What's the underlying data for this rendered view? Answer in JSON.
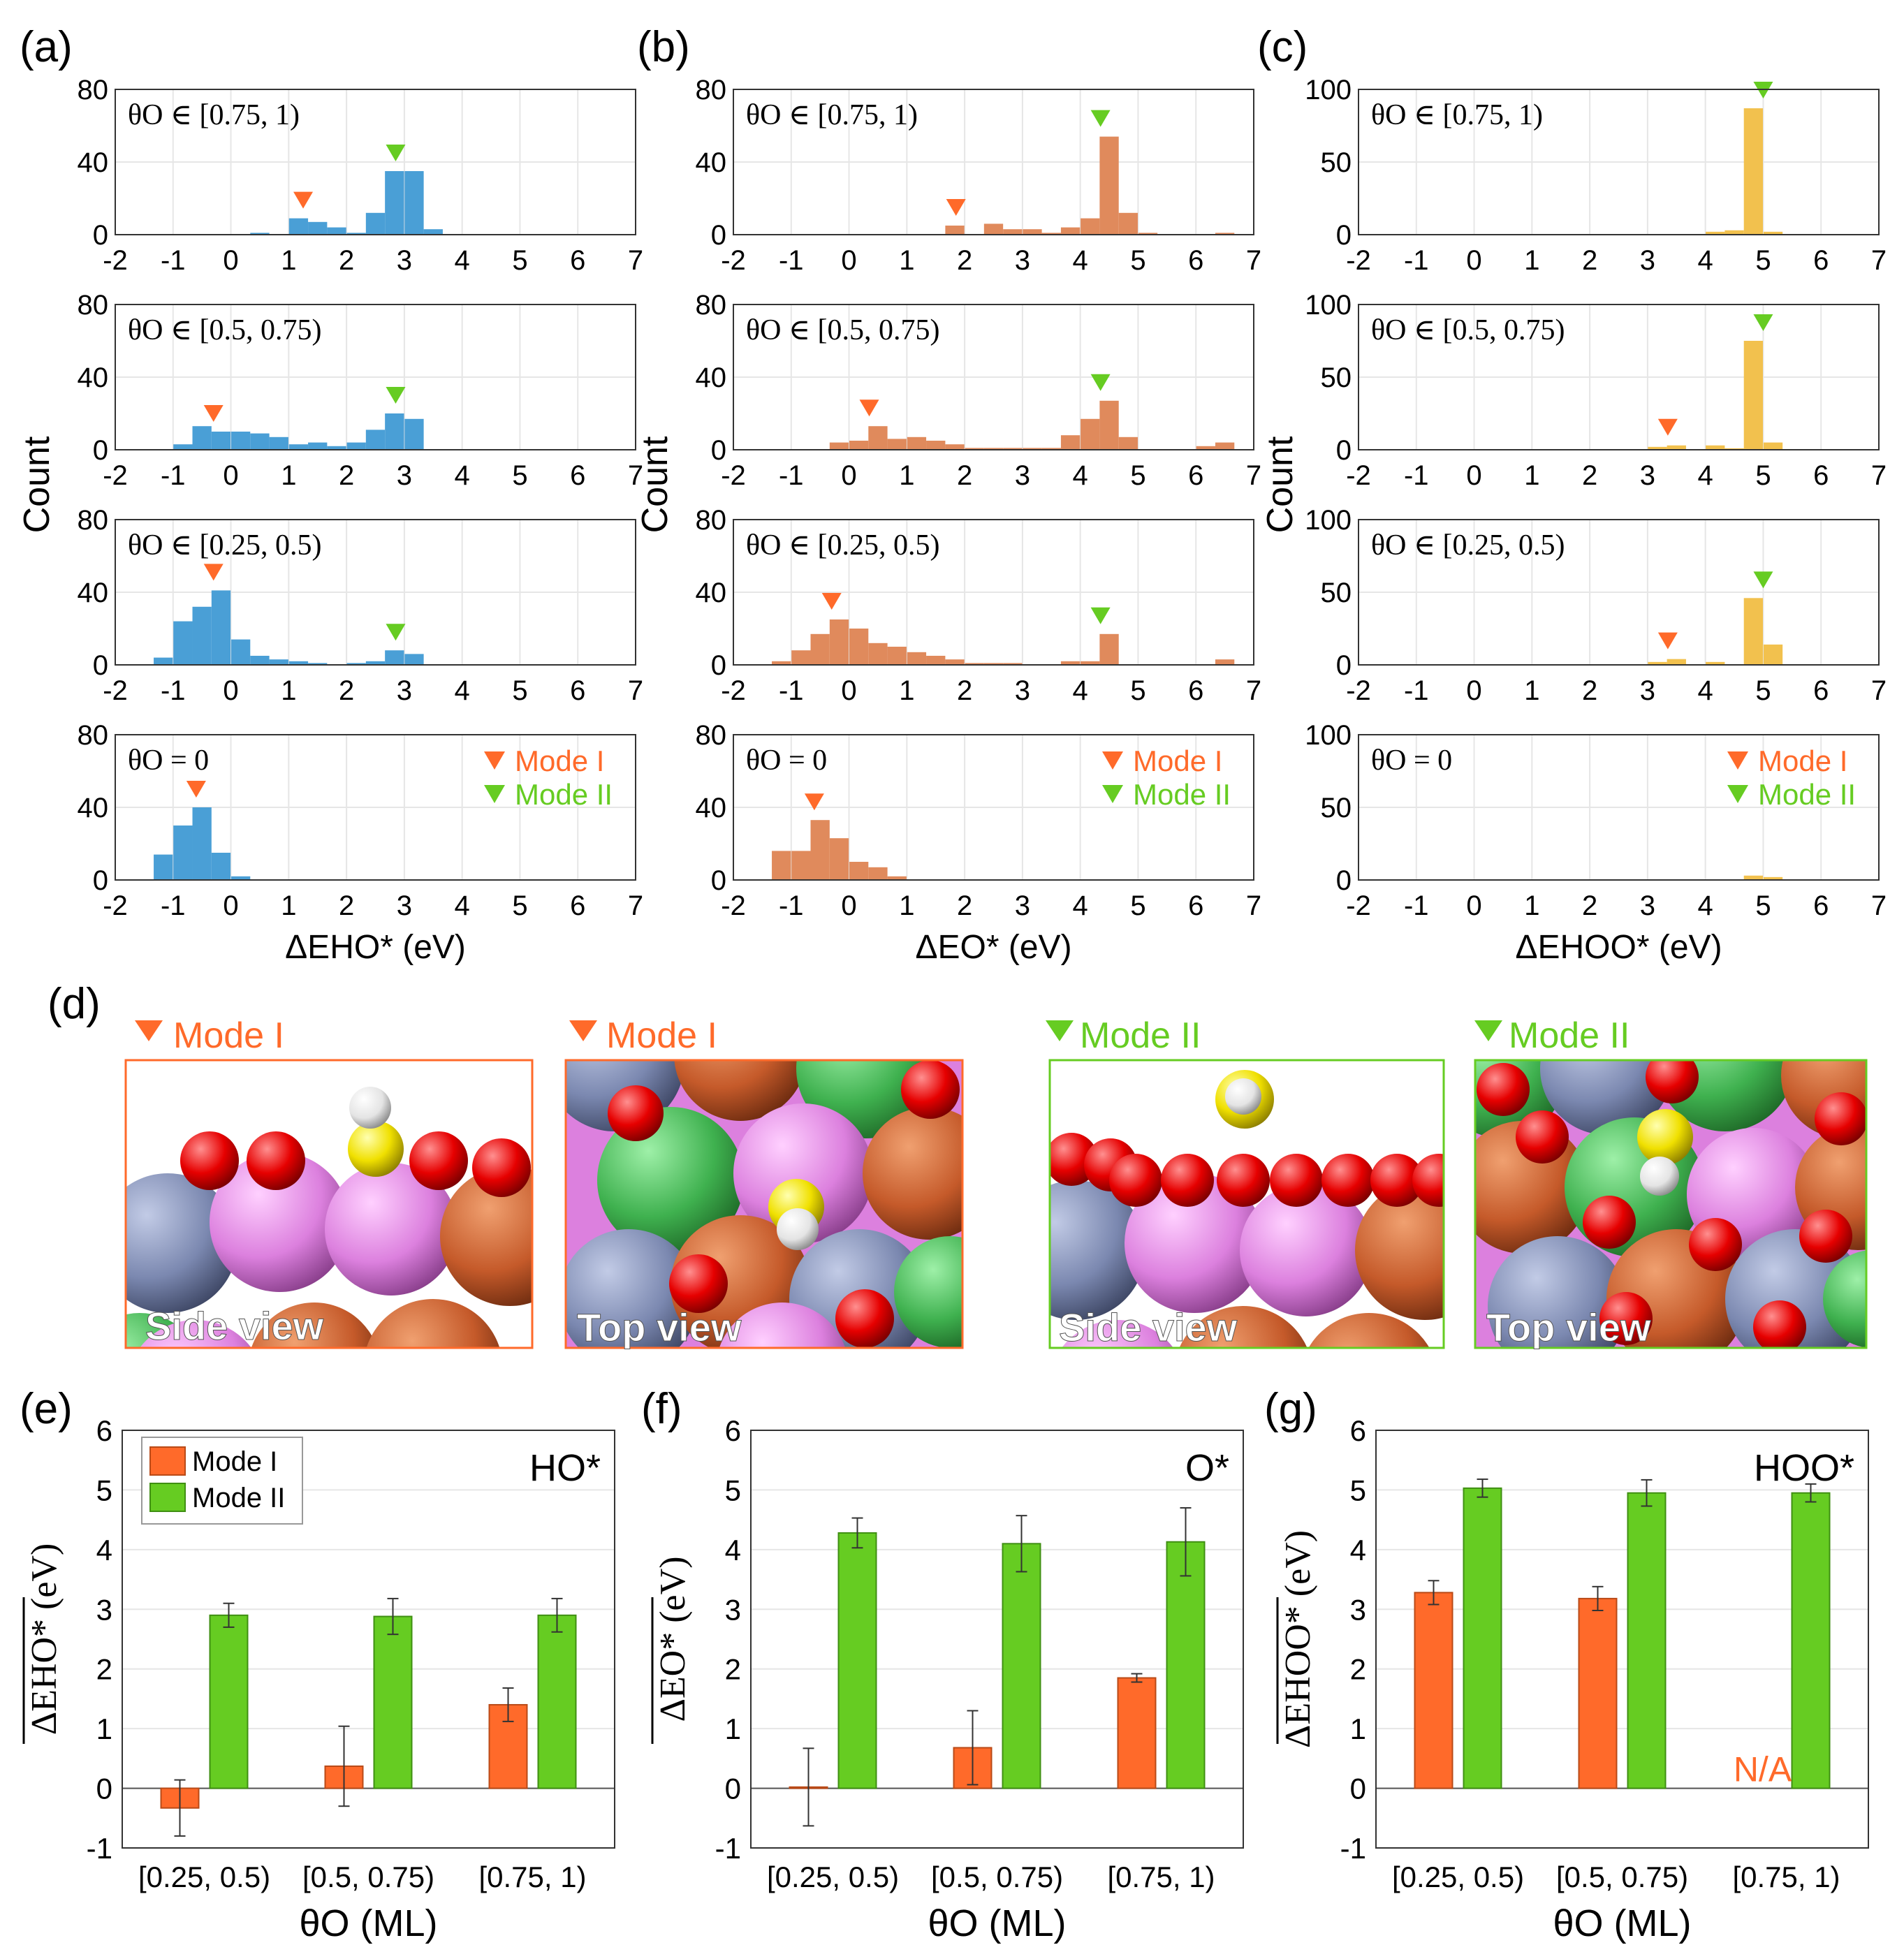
{
  "panel_letters": [
    "(a)",
    "(b)",
    "(c)",
    "(d)",
    "(e)",
    "(f)",
    "(g)"
  ],
  "colors": {
    "ho": "#4a9fd6",
    "o": "#e08a5c",
    "hoo": "#f2c14e",
    "mode1": "#ff6a2a",
    "mode2": "#66cc22"
  },
  "histograms": {
    "y_label": "Count",
    "xticks": [
      "-2",
      "-1",
      "0",
      "1",
      "2",
      "3",
      "4",
      "5",
      "6",
      "7"
    ],
    "row_titles": [
      "θO ∈ [0.75, 1)",
      "θO ∈ [0.5, 0.75)",
      "θO ∈ [0.25, 0.5)",
      "θO = 0"
    ],
    "legend": [
      "Mode I",
      "Mode II"
    ],
    "columns": [
      {
        "xlabel": "ΔEHO* (eV)",
        "yticks": [
          "0",
          "40",
          "80"
        ],
        "ymax": 80
      },
      {
        "xlabel": "ΔEO* (eV)",
        "yticks": [
          "0",
          "40",
          "80"
        ],
        "ymax": 80
      },
      {
        "xlabel": "ΔEHOO* (eV)",
        "yticks": [
          "0",
          "50",
          "100"
        ],
        "ymax": 100
      }
    ]
  },
  "structures": {
    "mode1_title": "Mode I",
    "mode2_title": "Mode II",
    "side_view": "Side view",
    "top_view": "Top view"
  },
  "chart_data": [
    {
      "type": "bar",
      "panel": "(a)",
      "title": "θO ∈ [0.75, 1)",
      "xlabel": "ΔEHO* (eV)",
      "ylabel": "Count",
      "xlim": [
        -2,
        7
      ],
      "ylim": [
        0,
        80
      ],
      "bin_width": 0.33,
      "bins": [
        [
          0.5,
          1
        ],
        [
          0.83,
          0
        ],
        [
          1.17,
          9
        ],
        [
          1.5,
          7
        ],
        [
          1.83,
          4
        ],
        [
          2.17,
          1
        ],
        [
          2.5,
          12
        ],
        [
          2.83,
          35
        ],
        [
          3.17,
          35
        ],
        [
          3.5,
          3
        ]
      ],
      "markers": [
        {
          "mode": "Mode I",
          "x": 1.25
        },
        {
          "mode": "Mode II",
          "x": 2.85
        }
      ]
    },
    {
      "type": "bar",
      "panel": "(a)",
      "title": "θO ∈ [0.5, 0.75)",
      "xlabel": "ΔEHO* (eV)",
      "ylabel": "Count",
      "xlim": [
        -2,
        7
      ],
      "ylim": [
        0,
        80
      ],
      "bin_width": 0.33,
      "bins": [
        [
          -0.83,
          3
        ],
        [
          -0.5,
          13
        ],
        [
          -0.17,
          10
        ],
        [
          0.17,
          10
        ],
        [
          0.5,
          9
        ],
        [
          0.83,
          7
        ],
        [
          1.17,
          3
        ],
        [
          1.5,
          4
        ],
        [
          1.83,
          2
        ],
        [
          2.17,
          4
        ],
        [
          2.5,
          11
        ],
        [
          2.83,
          20
        ],
        [
          3.17,
          17
        ]
      ],
      "markers": [
        {
          "mode": "Mode I",
          "x": -0.3
        },
        {
          "mode": "Mode II",
          "x": 2.85
        }
      ]
    },
    {
      "type": "bar",
      "panel": "(a)",
      "title": "θO ∈ [0.25, 0.5)",
      "xlabel": "ΔEHO* (eV)",
      "ylabel": "Count",
      "xlim": [
        -2,
        7
      ],
      "ylim": [
        0,
        80
      ],
      "bin_width": 0.33,
      "bins": [
        [
          -1.17,
          4
        ],
        [
          -0.83,
          24
        ],
        [
          -0.5,
          32
        ],
        [
          -0.17,
          41
        ],
        [
          0.17,
          14
        ],
        [
          0.5,
          5
        ],
        [
          0.83,
          3
        ],
        [
          1.17,
          2
        ],
        [
          1.5,
          1
        ],
        [
          1.83,
          0
        ],
        [
          2.17,
          1
        ],
        [
          2.5,
          2
        ],
        [
          2.83,
          8
        ],
        [
          3.17,
          6
        ]
      ],
      "markers": [
        {
          "mode": "Mode I",
          "x": -0.3
        },
        {
          "mode": "Mode II",
          "x": 2.85
        }
      ]
    },
    {
      "type": "bar",
      "panel": "(a)",
      "title": "θO = 0",
      "xlabel": "ΔEHO* (eV)",
      "ylabel": "Count",
      "xlim": [
        -2,
        7
      ],
      "ylim": [
        0,
        80
      ],
      "bin_width": 0.33,
      "bins": [
        [
          -1.17,
          14
        ],
        [
          -0.83,
          30
        ],
        [
          -0.5,
          40
        ],
        [
          -0.17,
          15
        ],
        [
          0.17,
          2
        ]
      ],
      "markers": [
        {
          "mode": "Mode I",
          "x": -0.6
        }
      ]
    },
    {
      "type": "bar",
      "panel": "(b)",
      "title": "θO ∈ [0.75, 1)",
      "xlabel": "ΔEO* (eV)",
      "ylabel": "Count",
      "xlim": [
        -2,
        7
      ],
      "ylim": [
        0,
        80
      ],
      "bin_width": 0.33,
      "bins": [
        [
          1.83,
          5
        ],
        [
          2.5,
          6
        ],
        [
          2.83,
          3
        ],
        [
          3.17,
          3
        ],
        [
          3.5,
          1
        ],
        [
          3.83,
          4
        ],
        [
          4.17,
          9
        ],
        [
          4.5,
          54
        ],
        [
          4.83,
          12
        ],
        [
          5.17,
          1
        ],
        [
          6.5,
          1
        ]
      ],
      "markers": [
        {
          "mode": "Mode I",
          "x": 1.85
        },
        {
          "mode": "Mode II",
          "x": 4.35
        }
      ]
    },
    {
      "type": "bar",
      "panel": "(b)",
      "title": "θO ∈ [0.5, 0.75)",
      "xlabel": "ΔEO* (eV)",
      "ylabel": "Count",
      "xlim": [
        -2,
        7
      ],
      "ylim": [
        0,
        80
      ],
      "bin_width": 0.33,
      "bins": [
        [
          -0.17,
          4
        ],
        [
          0.17,
          5
        ],
        [
          0.5,
          13
        ],
        [
          0.83,
          6
        ],
        [
          1.17,
          7
        ],
        [
          1.5,
          5
        ],
        [
          1.83,
          3
        ],
        [
          2.17,
          1
        ],
        [
          2.5,
          1
        ],
        [
          2.83,
          1
        ],
        [
          3.17,
          1
        ],
        [
          3.5,
          1
        ],
        [
          3.83,
          8
        ],
        [
          4.17,
          17
        ],
        [
          4.5,
          27
        ],
        [
          4.83,
          7
        ],
        [
          6.17,
          2
        ],
        [
          6.5,
          4
        ]
      ],
      "markers": [
        {
          "mode": "Mode I",
          "x": 0.35
        },
        {
          "mode": "Mode II",
          "x": 4.35
        }
      ]
    },
    {
      "type": "bar",
      "panel": "(b)",
      "title": "θO ∈ [0.25, 0.5)",
      "xlabel": "ΔEO* (eV)",
      "ylabel": "Count",
      "xlim": [
        -2,
        7
      ],
      "ylim": [
        0,
        80
      ],
      "bin_width": 0.33,
      "bins": [
        [
          -1.17,
          2
        ],
        [
          -0.83,
          8
        ],
        [
          -0.5,
          17
        ],
        [
          -0.17,
          25
        ],
        [
          0.17,
          20
        ],
        [
          0.5,
          12
        ],
        [
          0.83,
          10
        ],
        [
          1.17,
          7
        ],
        [
          1.5,
          5
        ],
        [
          1.83,
          3
        ],
        [
          2.17,
          1
        ],
        [
          2.5,
          1
        ],
        [
          2.83,
          1
        ],
        [
          3.83,
          2
        ],
        [
          4.17,
          2
        ],
        [
          4.5,
          17
        ],
        [
          6.5,
          3
        ]
      ],
      "markers": [
        {
          "mode": "Mode I",
          "x": -0.3
        },
        {
          "mode": "Mode II",
          "x": 4.35
        }
      ]
    },
    {
      "type": "bar",
      "panel": "(b)",
      "title": "θO = 0",
      "xlabel": "ΔEO* (eV)",
      "ylabel": "Count",
      "xlim": [
        -2,
        7
      ],
      "ylim": [
        0,
        80
      ],
      "bin_width": 0.33,
      "bins": [
        [
          -1.17,
          16
        ],
        [
          -0.83,
          16
        ],
        [
          -0.5,
          33
        ],
        [
          -0.17,
          23
        ],
        [
          0.17,
          10
        ],
        [
          0.5,
          7
        ],
        [
          0.83,
          2
        ]
      ],
      "markers": [
        {
          "mode": "Mode I",
          "x": -0.6
        }
      ]
    },
    {
      "type": "bar",
      "panel": "(c)",
      "title": "θO ∈ [0.75, 1)",
      "xlabel": "ΔEHOO* (eV)",
      "ylabel": "Count",
      "xlim": [
        -2,
        7
      ],
      "ylim": [
        0,
        100
      ],
      "bin_width": 0.33,
      "bins": [
        [
          4.17,
          2
        ],
        [
          4.5,
          3
        ],
        [
          4.83,
          87
        ],
        [
          5.17,
          2
        ]
      ],
      "markers": [
        {
          "mode": "Mode II",
          "x": 5.0
        }
      ]
    },
    {
      "type": "bar",
      "panel": "(c)",
      "title": "θO ∈ [0.5, 0.75)",
      "xlabel": "ΔEHOO* (eV)",
      "ylabel": "Count",
      "xlim": [
        -2,
        7
      ],
      "ylim": [
        0,
        100
      ],
      "bin_width": 0.33,
      "bins": [
        [
          3.17,
          2
        ],
        [
          3.5,
          3
        ],
        [
          4.17,
          3
        ],
        [
          4.5,
          1
        ],
        [
          4.83,
          75
        ],
        [
          5.17,
          5
        ]
      ],
      "markers": [
        {
          "mode": "Mode I",
          "x": 3.35
        },
        {
          "mode": "Mode II",
          "x": 5.0
        }
      ]
    },
    {
      "type": "bar",
      "panel": "(c)",
      "title": "θO ∈ [0.25, 0.5)",
      "xlabel": "ΔEHOO* (eV)",
      "ylabel": "Count",
      "xlim": [
        -2,
        7
      ],
      "ylim": [
        0,
        100
      ],
      "bin_width": 0.33,
      "bins": [
        [
          3.17,
          2
        ],
        [
          3.5,
          4
        ],
        [
          4.17,
          2
        ],
        [
          4.83,
          46
        ],
        [
          5.17,
          14
        ]
      ],
      "markers": [
        {
          "mode": "Mode I",
          "x": 3.35
        },
        {
          "mode": "Mode II",
          "x": 5.0
        }
      ]
    },
    {
      "type": "bar",
      "panel": "(c)",
      "title": "θO = 0",
      "xlabel": "ΔEHOO* (eV)",
      "ylabel": "Count",
      "xlim": [
        -2,
        7
      ],
      "ylim": [
        0,
        100
      ],
      "bin_width": 0.33,
      "bins": [
        [
          4.83,
          3
        ],
        [
          5.17,
          2
        ]
      ],
      "markers": []
    },
    {
      "type": "bar",
      "panel": "(e)",
      "annotation": "HO*",
      "xlabel": "θO (ML)",
      "ylabel": "ΔEHO* (eV)",
      "ylim": [
        -1,
        6
      ],
      "yticks": [
        "-1",
        "0",
        "1",
        "2",
        "3",
        "4",
        "5",
        "6"
      ],
      "categories": [
        "[0.25, 0.5)",
        "[0.5, 0.75)",
        "[0.75, 1)"
      ],
      "series": [
        {
          "name": "Mode I",
          "values": [
            -0.33,
            0.37,
            1.4
          ],
          "errors": [
            0.47,
            0.67,
            0.28
          ]
        },
        {
          "name": "Mode II",
          "values": [
            2.9,
            2.88,
            2.9
          ],
          "errors": [
            0.2,
            0.3,
            0.28
          ]
        }
      ]
    },
    {
      "type": "bar",
      "panel": "(f)",
      "annotation": "O*",
      "xlabel": "θO (ML)",
      "ylabel": "ΔEO* (eV)",
      "ylim": [
        -1,
        6
      ],
      "yticks": [
        "-1",
        "0",
        "1",
        "2",
        "3",
        "4",
        "5",
        "6"
      ],
      "categories": [
        "[0.25, 0.5)",
        "[0.5, 0.75)",
        "[0.75, 1)"
      ],
      "series": [
        {
          "name": "Mode I",
          "values": [
            0.02,
            0.68,
            1.85
          ],
          "errors": [
            0.65,
            0.62,
            0.07
          ]
        },
        {
          "name": "Mode II",
          "values": [
            4.28,
            4.1,
            4.13
          ],
          "errors": [
            0.25,
            0.47,
            0.57
          ]
        }
      ]
    },
    {
      "type": "bar",
      "panel": "(g)",
      "annotation": "HOO*",
      "na_label": "N/A",
      "xlabel": "θO (ML)",
      "ylabel": "ΔEHOO* (eV)",
      "ylim": [
        -1,
        6
      ],
      "yticks": [
        "-1",
        "0",
        "1",
        "2",
        "3",
        "4",
        "5",
        "6"
      ],
      "categories": [
        "[0.25, 0.5)",
        "[0.5, 0.75)",
        "[0.75, 1)"
      ],
      "series": [
        {
          "name": "Mode I",
          "values": [
            3.28,
            3.18,
            null
          ],
          "errors": [
            0.2,
            0.2,
            null
          ]
        },
        {
          "name": "Mode II",
          "values": [
            5.03,
            4.95,
            4.95
          ],
          "errors": [
            0.15,
            0.22,
            0.15
          ]
        }
      ]
    }
  ]
}
